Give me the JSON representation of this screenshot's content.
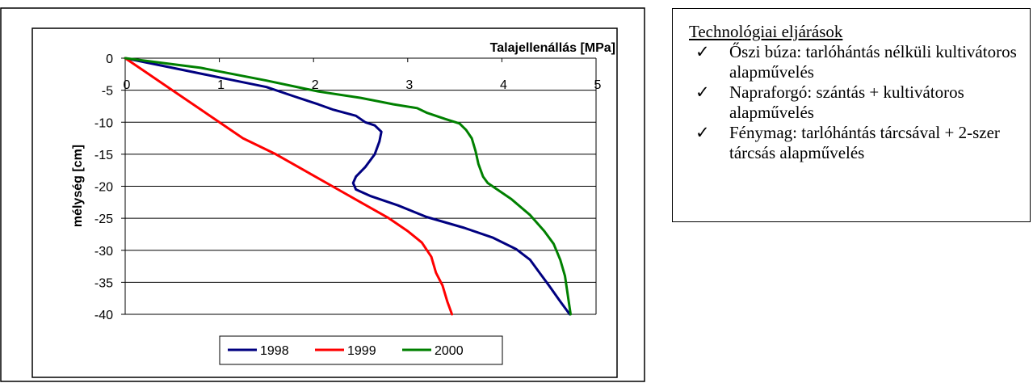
{
  "chart_data": {
    "type": "line",
    "title": "",
    "x_axis_label": "Talajellenállás [MPa]",
    "y_axis_label": "mélység [cm]",
    "x_ticks": [
      "0",
      "1",
      "2",
      "3",
      "4",
      "5"
    ],
    "y_ticks": [
      "0",
      "-5",
      "-10",
      "-15",
      "-20",
      "-25",
      "-30",
      "-35",
      "-40"
    ],
    "xlim": [
      0,
      5
    ],
    "ylim": [
      -40,
      0
    ],
    "x_axis_position": "top",
    "grid": "horizontal",
    "legend_position": "bottom",
    "series": [
      {
        "name": "1998",
        "color": "#000080",
        "points": [
          [
            0,
            0
          ],
          [
            0.5,
            -1.5
          ],
          [
            1,
            -3
          ],
          [
            1.5,
            -4.5
          ],
          [
            1.8,
            -6
          ],
          [
            2.05,
            -7.2
          ],
          [
            2.2,
            -8
          ],
          [
            2.45,
            -9
          ],
          [
            2.55,
            -10
          ],
          [
            2.65,
            -10.5
          ],
          [
            2.72,
            -11.5
          ],
          [
            2.7,
            -13
          ],
          [
            2.65,
            -15
          ],
          [
            2.55,
            -17
          ],
          [
            2.45,
            -18.5
          ],
          [
            2.42,
            -19.5
          ],
          [
            2.45,
            -20.5
          ],
          [
            2.6,
            -21.5
          ],
          [
            2.9,
            -23
          ],
          [
            3.2,
            -24.8
          ],
          [
            3.6,
            -26.5
          ],
          [
            3.9,
            -28
          ],
          [
            4.15,
            -29.8
          ],
          [
            4.3,
            -31.5
          ],
          [
            4.4,
            -33.5
          ],
          [
            4.5,
            -35.5
          ],
          [
            4.62,
            -38
          ],
          [
            4.72,
            -40
          ]
        ]
      },
      {
        "name": "1999",
        "color": "#ff0000",
        "points": [
          [
            0,
            0
          ],
          [
            0.2,
            -2
          ],
          [
            0.5,
            -5
          ],
          [
            0.8,
            -8
          ],
          [
            1,
            -10
          ],
          [
            1.25,
            -12.5
          ],
          [
            1.6,
            -15
          ],
          [
            1.9,
            -17.5
          ],
          [
            2.2,
            -20
          ],
          [
            2.5,
            -22.5
          ],
          [
            2.8,
            -25
          ],
          [
            3,
            -27
          ],
          [
            3.15,
            -28.8
          ],
          [
            3.25,
            -31
          ],
          [
            3.3,
            -33.5
          ],
          [
            3.37,
            -35.5
          ],
          [
            3.42,
            -38
          ],
          [
            3.47,
            -40
          ]
        ]
      },
      {
        "name": "2000",
        "color": "#008000",
        "points": [
          [
            0,
            0
          ],
          [
            0.8,
            -1.5
          ],
          [
            1.5,
            -3.5
          ],
          [
            2.05,
            -5.2
          ],
          [
            2.5,
            -6.2
          ],
          [
            2.85,
            -7.2
          ],
          [
            3.1,
            -7.8
          ],
          [
            3.2,
            -8.5
          ],
          [
            3.4,
            -9.5
          ],
          [
            3.55,
            -10.2
          ],
          [
            3.62,
            -11.2
          ],
          [
            3.68,
            -12.5
          ],
          [
            3.72,
            -14.5
          ],
          [
            3.75,
            -16.5
          ],
          [
            3.8,
            -18.5
          ],
          [
            3.85,
            -19.5
          ],
          [
            4.1,
            -22
          ],
          [
            4.3,
            -24.5
          ],
          [
            4.45,
            -27
          ],
          [
            4.55,
            -29
          ],
          [
            4.62,
            -31.5
          ],
          [
            4.67,
            -34
          ],
          [
            4.7,
            -37
          ],
          [
            4.73,
            -40
          ]
        ]
      }
    ]
  },
  "technology_box": {
    "title": "Technológiai eljárások",
    "check_glyph": "✓",
    "items": [
      "Őszi búza: tarlóhántás nélküli kultivátoros alapművelés",
      "Napraforgó: szántás + kultivátoros alapművelés",
      "Fénymag: tarlóhántás tárcsával + 2-szer tárcsás alapművelés"
    ]
  }
}
